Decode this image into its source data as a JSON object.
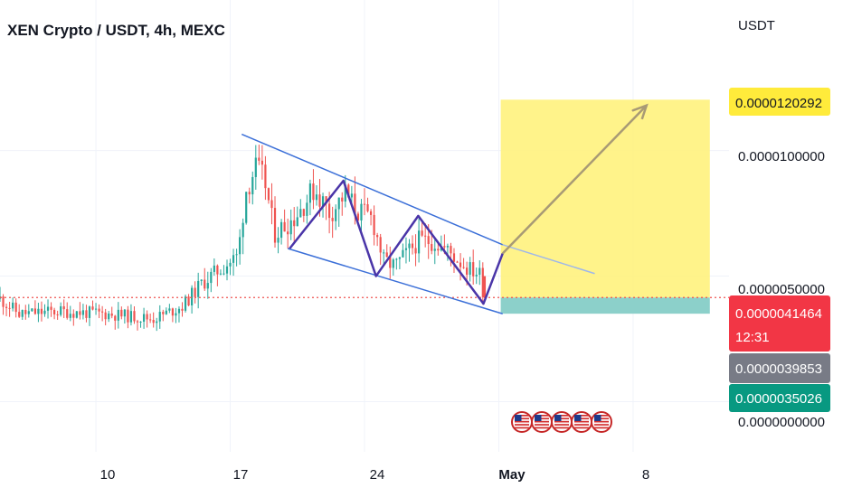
{
  "chart_data": {
    "type": "candlestick",
    "title": "XEN Crypto / USDT, 4h, MEXC",
    "currency": "USDT",
    "y_ticks": [
      "0.0000100000",
      "0.0000050000",
      "0.0000000000"
    ],
    "x_ticks": [
      "10",
      "17",
      "24",
      "May",
      "8"
    ],
    "x_range_days": [
      5,
      43
    ],
    "y_range": [
      -2e-06,
      1.6e-05
    ],
    "price_tags": {
      "target": "0.0000120292",
      "last": "0.0000041464",
      "countdown": "12:31",
      "mark": "0.0000039853",
      "stop": "0.0000035026"
    },
    "price_levels": {
      "target": 1.20292e-05,
      "last": 4.1464e-06,
      "mark": 3.9853e-06,
      "stop": 3.5026e-06
    },
    "colors": {
      "up": "#26a69a",
      "down": "#ef5350",
      "channel": "#3b6fd8",
      "pattern": "#4a35a8",
      "target_zone": "#fff176",
      "stop_zone": "#80cbc4",
      "arrow": "#a89a75",
      "last_tag": "#f23645",
      "mark_tag": "#787b86",
      "stop_tag": "#089981",
      "target_tag": "#ffeb3b"
    },
    "events_icon": "us-flag-icon",
    "events_count": 5
  }
}
